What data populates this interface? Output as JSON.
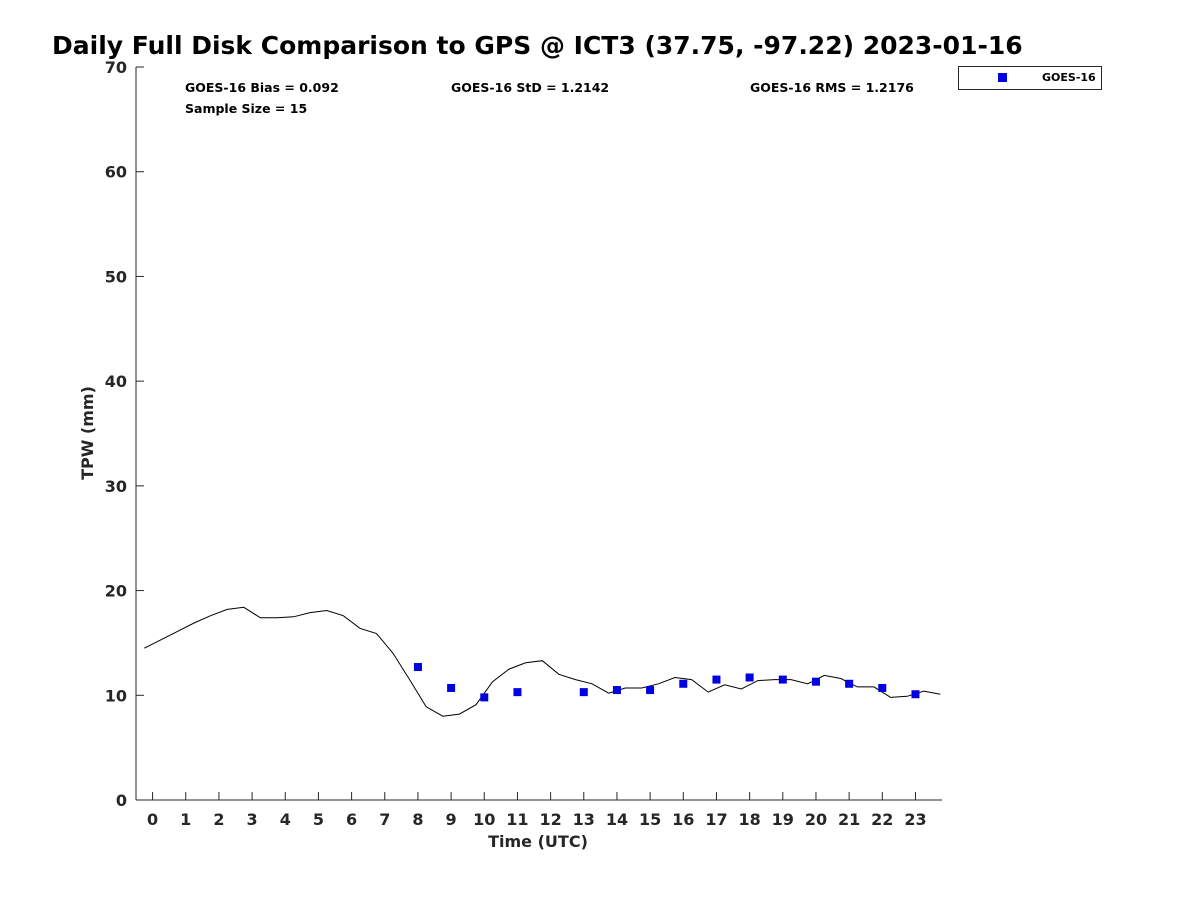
{
  "chart_data": {
    "type": "scatter",
    "title": "Daily Full Disk Comparison to GPS @ ICT3 (37.75, -97.22) 2023-01-16",
    "xlabel": "Time (UTC)",
    "ylabel": "TPW (mm)",
    "xlim": [
      -0.5,
      23.8
    ],
    "ylim": [
      0,
      70
    ],
    "x_ticks": [
      "0",
      "1",
      "2",
      "3",
      "4",
      "5",
      "6",
      "7",
      "8",
      "9",
      "10",
      "11",
      "12",
      "13",
      "14",
      "15",
      "16",
      "17",
      "18",
      "19",
      "20",
      "21",
      "22",
      "23"
    ],
    "y_ticks": [
      "0",
      "10",
      "20",
      "30",
      "40",
      "50",
      "60",
      "70"
    ],
    "grid": false,
    "legend_position": "top-right, outside plot",
    "stats": {
      "bias": "GOES-16 Bias = 0.092",
      "std": "GOES-16 StD = 1.2142",
      "rms": "GOES-16 RMS = 1.2176",
      "sample": "Sample Size = 15"
    },
    "series": [
      {
        "name": "GOES-16",
        "kind": "scatter",
        "marker": "square",
        "color": "#0000e0",
        "x": [
          8,
          9,
          10,
          11,
          13,
          14,
          15,
          16,
          17,
          18,
          19,
          20,
          21,
          22,
          23
        ],
        "y": [
          12.7,
          10.7,
          9.8,
          10.3,
          10.3,
          10.5,
          10.5,
          11.1,
          11.5,
          11.7,
          11.5,
          11.3,
          11.1,
          10.7,
          10.1
        ]
      },
      {
        "kind": "line",
        "color": "#000000",
        "x": [
          -0.25,
          0.25,
          0.75,
          1.25,
          1.75,
          2.25,
          2.75,
          3.25,
          3.75,
          4.25,
          4.75,
          5.25,
          5.75,
          6.25,
          6.75,
          7.25,
          7.75,
          8.25,
          8.75,
          9.25,
          9.75,
          10.25,
          10.75,
          11.25,
          11.75,
          12.25,
          12.75,
          13.25,
          13.75,
          14.25,
          14.75,
          15.25,
          15.75,
          16.25,
          16.75,
          17.25,
          17.75,
          18.25,
          18.75,
          19.25,
          19.75,
          20.25,
          20.75,
          21.25,
          21.75,
          22.25,
          22.75,
          23.25,
          23.75
        ],
        "y": [
          14.5,
          15.3,
          16.1,
          16.9,
          17.6,
          18.2,
          18.4,
          17.4,
          17.4,
          17.5,
          17.9,
          18.1,
          17.6,
          16.4,
          15.9,
          14.0,
          11.5,
          8.9,
          8.0,
          8.2,
          9.1,
          11.3,
          12.5,
          13.1,
          13.3,
          12.0,
          11.5,
          11.1,
          10.2,
          10.7,
          10.7,
          11.1,
          11.7,
          11.5,
          10.3,
          11.0,
          10.6,
          11.4,
          11.5,
          11.5,
          11.1,
          11.9,
          11.6,
          10.8,
          10.8,
          9.8,
          9.9,
          10.4,
          10.1
        ]
      }
    ]
  }
}
